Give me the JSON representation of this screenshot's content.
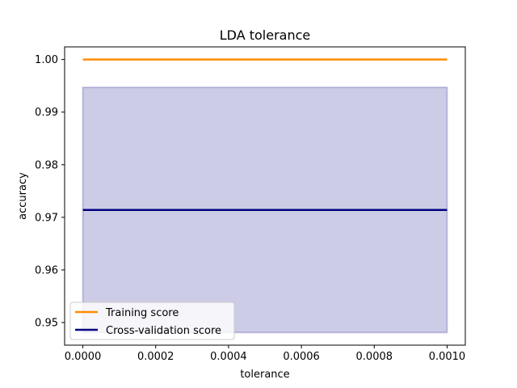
{
  "chart_data": {
    "type": "line",
    "title": "LDA tolerance",
    "xlabel": "tolerance",
    "ylabel": "accuracy",
    "xlim": [
      -5e-05,
      0.00105
    ],
    "ylim": [
      0.9457,
      1.0024
    ],
    "x": [
      1e-07,
      1e-06,
      1e-05,
      0.0001,
      0.001
    ],
    "xticks": [
      0.0,
      0.0002,
      0.0004,
      0.0006,
      0.0008,
      0.001
    ],
    "xtick_labels": [
      "0.0000",
      "0.0002",
      "0.0004",
      "0.0006",
      "0.0008",
      "0.0010"
    ],
    "yticks": [
      0.95,
      0.96,
      0.97,
      0.98,
      0.99,
      1.0
    ],
    "ytick_labels": [
      "0.95",
      "0.96",
      "0.97",
      "0.98",
      "0.99",
      "1.00"
    ],
    "grid": false,
    "legend_position": "lower-left",
    "series": [
      {
        "name": "Training score",
        "color": "#ff8c00",
        "values": [
          1.0,
          1.0,
          1.0,
          1.0,
          1.0
        ]
      },
      {
        "name": "Cross-validation score",
        "color": "#000080",
        "values": [
          0.9714,
          0.9714,
          0.9714,
          0.9714,
          0.9714
        ],
        "band_lower": [
          0.9481,
          0.9481,
          0.9481,
          0.9481,
          0.9481
        ],
        "band_upper": [
          0.9947,
          0.9947,
          0.9947,
          0.9947,
          0.9947
        ],
        "band_color": "#000080"
      }
    ]
  }
}
